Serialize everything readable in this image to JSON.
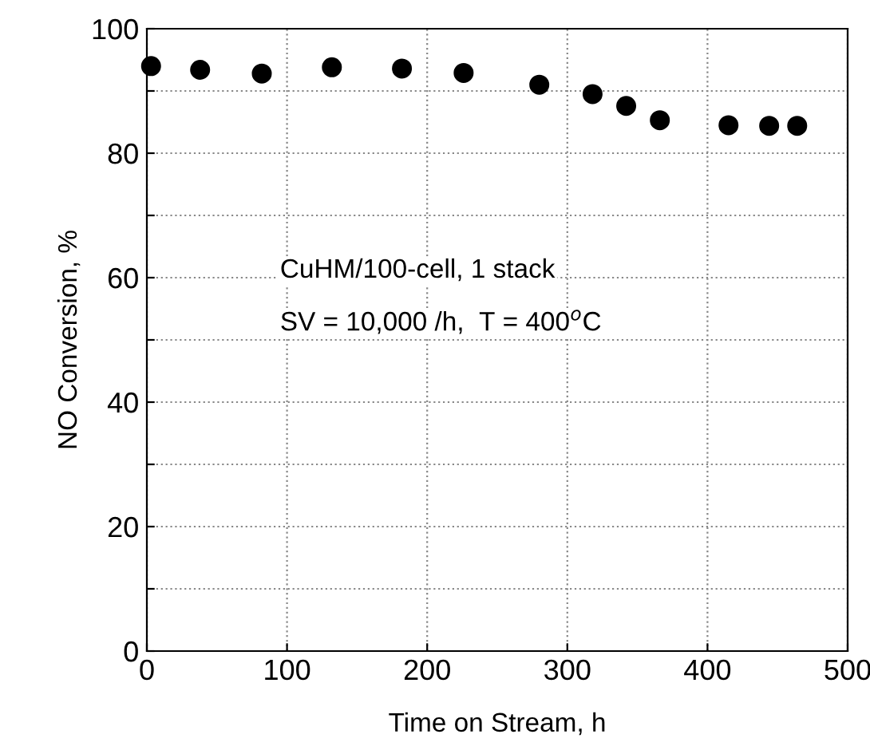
{
  "chart_data": {
    "type": "scatter",
    "xlabel": "Time on Stream, h",
    "ylabel": "NO Conversion, %",
    "x": [
      3,
      38,
      82,
      132,
      182,
      226,
      280,
      318,
      342,
      366,
      415,
      444,
      464
    ],
    "values": [
      94.0,
      93.4,
      92.8,
      93.8,
      93.6,
      92.9,
      91.0,
      89.5,
      87.6,
      85.3,
      84.5,
      84.4,
      84.4
    ],
    "color": "#000000",
    "marker": "circle",
    "grid": true,
    "xlim": [
      0,
      500
    ],
    "xticks": [
      0,
      100,
      200,
      300,
      400,
      500
    ],
    "ylim": [
      0,
      100
    ],
    "yticks": [
      0,
      {
        "value": 10,
        "label": null
      },
      20,
      {
        "value": 30,
        "label": null
      },
      40,
      {
        "value": 50,
        "label": null
      },
      60,
      {
        "value": 70,
        "label": null
      },
      80,
      {
        "value": 90,
        "label": null
      },
      100
    ],
    "annotations": [
      "CuHM/100-cell, 1 stack",
      "SV = 10,000 /h,  T = 400$^{o}$C"
    ]
  }
}
